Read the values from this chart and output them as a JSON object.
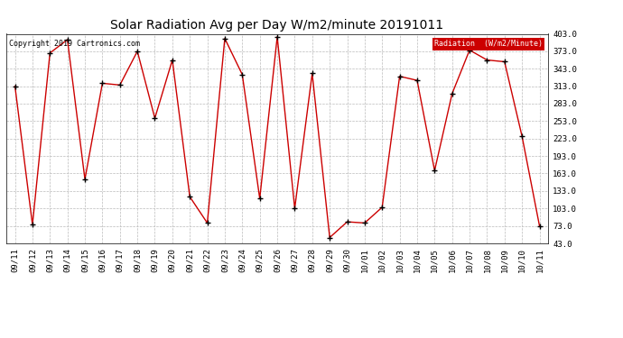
{
  "title": "Solar Radiation Avg per Day W/m2/minute 20191011",
  "copyright_text": "Copyright 2019 Cartronics.com",
  "legend_label": "Radiation  (W/m2/Minute)",
  "legend_bg": "#cc0000",
  "legend_fg": "#ffffff",
  "dates": [
    "09/11",
    "09/12",
    "09/13",
    "09/14",
    "09/15",
    "09/16",
    "09/17",
    "09/18",
    "09/19",
    "09/20",
    "09/21",
    "09/22",
    "09/23",
    "09/24",
    "09/25",
    "09/26",
    "09/27",
    "09/28",
    "09/29",
    "09/30",
    "10/01",
    "10/02",
    "10/03",
    "10/04",
    "10/05",
    "10/06",
    "10/07",
    "10/08",
    "10/09",
    "10/10",
    "10/11"
  ],
  "values": [
    313,
    75,
    370,
    393,
    153,
    318,
    315,
    373,
    258,
    358,
    123,
    78,
    395,
    333,
    120,
    398,
    103,
    335,
    53,
    80,
    78,
    105,
    330,
    323,
    168,
    300,
    375,
    358,
    355,
    227,
    73
  ],
  "line_color": "#cc0000",
  "marker_color": "#000000",
  "bg_color": "#ffffff",
  "grid_color": "#bbbbbb",
  "ylim_min": 43.0,
  "ylim_max": 403.0,
  "yticks": [
    43.0,
    73.0,
    103.0,
    133.0,
    163.0,
    193.0,
    223.0,
    253.0,
    283.0,
    313.0,
    343.0,
    373.0,
    403.0
  ]
}
